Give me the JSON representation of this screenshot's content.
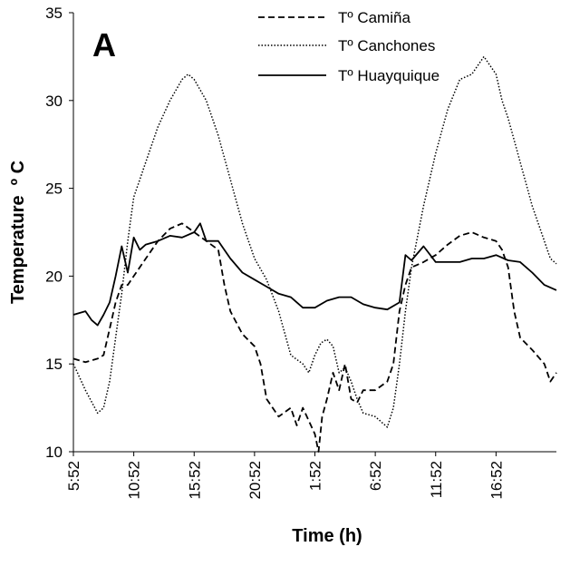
{
  "chart_data": {
    "type": "line",
    "panel_label": "A",
    "xlabel": "Time (h)",
    "ylabel": "Temperature  º C",
    "ylim": [
      10,
      35
    ],
    "yticks": [
      10,
      15,
      20,
      25,
      30,
      35
    ],
    "xlim_hours": [
      0,
      40
    ],
    "xticks": [
      {
        "hours": 0,
        "label": "5:52"
      },
      {
        "hours": 5,
        "label": "10:52"
      },
      {
        "hours": 10,
        "label": "15:52"
      },
      {
        "hours": 15,
        "label": "20:52"
      },
      {
        "hours": 20,
        "label": "1:52"
      },
      {
        "hours": 25,
        "label": "6:52"
      },
      {
        "hours": 30,
        "label": "11:52"
      },
      {
        "hours": 35,
        "label": "16:52"
      }
    ],
    "legend_position": "top-right",
    "series": [
      {
        "name": "Tº Camiña",
        "style": "dashed",
        "points": [
          [
            0,
            15.3
          ],
          [
            1,
            15.1
          ],
          [
            2,
            15.3
          ],
          [
            2.5,
            15.5
          ],
          [
            3,
            17
          ],
          [
            3.5,
            18.5
          ],
          [
            4,
            19.5
          ],
          [
            4.5,
            19.5
          ],
          [
            5,
            20
          ],
          [
            6,
            21
          ],
          [
            7,
            22
          ],
          [
            8,
            22.7
          ],
          [
            9,
            23
          ],
          [
            10,
            22.5
          ],
          [
            11,
            22
          ],
          [
            12,
            21.5
          ],
          [
            12.5,
            19.5
          ],
          [
            13,
            18
          ],
          [
            14,
            16.7
          ],
          [
            15,
            16
          ],
          [
            15.5,
            15
          ],
          [
            16,
            13
          ],
          [
            16.5,
            12.5
          ],
          [
            17,
            12
          ],
          [
            18,
            12.5
          ],
          [
            18.5,
            11.5
          ],
          [
            19,
            12.5
          ],
          [
            20,
            11
          ],
          [
            20.3,
            10
          ],
          [
            20.6,
            12
          ],
          [
            21,
            13
          ],
          [
            21.5,
            14.5
          ],
          [
            22,
            13.5
          ],
          [
            22.5,
            15
          ],
          [
            23,
            13
          ],
          [
            23.5,
            12.8
          ],
          [
            24,
            13.5
          ],
          [
            25,
            13.5
          ],
          [
            26,
            14
          ],
          [
            26.5,
            15
          ],
          [
            27,
            18
          ],
          [
            27.5,
            19.5
          ],
          [
            28,
            20.5
          ],
          [
            29,
            20.8
          ],
          [
            30,
            21.2
          ],
          [
            31,
            21.8
          ],
          [
            32,
            22.3
          ],
          [
            33,
            22.5
          ],
          [
            34,
            22.2
          ],
          [
            35,
            22
          ],
          [
            35.5,
            21.5
          ],
          [
            36,
            20.5
          ],
          [
            36.5,
            18
          ],
          [
            37,
            16.5
          ],
          [
            38,
            15.8
          ],
          [
            39,
            15
          ],
          [
            39.5,
            14
          ],
          [
            40,
            14.5
          ]
        ]
      },
      {
        "name": "Tº Canchones",
        "style": "dotted",
        "points": [
          [
            0,
            15
          ],
          [
            1,
            13.5
          ],
          [
            2,
            12.2
          ],
          [
            2.5,
            12.5
          ],
          [
            3,
            14
          ],
          [
            3.5,
            16.5
          ],
          [
            4,
            19
          ],
          [
            4.5,
            22
          ],
          [
            5,
            24.5
          ],
          [
            5.5,
            25.5
          ],
          [
            6,
            26.5
          ],
          [
            7,
            28.5
          ],
          [
            8,
            30
          ],
          [
            9,
            31.2
          ],
          [
            9.5,
            31.5
          ],
          [
            10,
            31.2
          ],
          [
            11,
            30
          ],
          [
            12,
            28
          ],
          [
            13,
            25.5
          ],
          [
            14,
            23
          ],
          [
            15,
            21
          ],
          [
            16,
            19.8
          ],
          [
            17,
            18
          ],
          [
            18,
            15.5
          ],
          [
            19,
            15
          ],
          [
            19.5,
            14.5
          ],
          [
            20,
            15.5
          ],
          [
            20.5,
            16.2
          ],
          [
            21,
            16.4
          ],
          [
            21.5,
            16
          ],
          [
            22,
            14.5
          ],
          [
            22.5,
            14.8
          ],
          [
            23,
            14
          ],
          [
            23.5,
            13
          ],
          [
            24,
            12.2
          ],
          [
            25,
            12
          ],
          [
            26,
            11.4
          ],
          [
            26.5,
            12.5
          ],
          [
            27,
            15
          ],
          [
            27.5,
            18
          ],
          [
            28,
            20.5
          ],
          [
            29,
            24
          ],
          [
            30,
            27
          ],
          [
            31,
            29.5
          ],
          [
            32,
            31.2
          ],
          [
            33,
            31.5
          ],
          [
            34,
            32.5
          ],
          [
            34.5,
            32
          ],
          [
            35,
            31.5
          ],
          [
            35.5,
            30
          ],
          [
            36,
            29
          ],
          [
            37,
            26.5
          ],
          [
            38,
            24
          ],
          [
            39,
            22
          ],
          [
            39.5,
            21
          ],
          [
            40,
            20.7
          ]
        ]
      },
      {
        "name": "Tº Huayquique",
        "style": "solid",
        "points": [
          [
            0,
            17.8
          ],
          [
            1,
            18
          ],
          [
            1.5,
            17.5
          ],
          [
            2,
            17.2
          ],
          [
            2.5,
            17.8
          ],
          [
            3,
            18.5
          ],
          [
            3.5,
            20
          ],
          [
            4,
            21.7
          ],
          [
            4.5,
            20.2
          ],
          [
            5,
            22.2
          ],
          [
            5.5,
            21.5
          ],
          [
            6,
            21.8
          ],
          [
            7,
            22
          ],
          [
            8,
            22.3
          ],
          [
            9,
            22.2
          ],
          [
            10,
            22.5
          ],
          [
            10.5,
            23
          ],
          [
            11,
            22
          ],
          [
            12,
            22
          ],
          [
            13,
            21
          ],
          [
            14,
            20.2
          ],
          [
            15,
            19.8
          ],
          [
            16,
            19.4
          ],
          [
            17,
            19
          ],
          [
            18,
            18.8
          ],
          [
            19,
            18.2
          ],
          [
            20,
            18.2
          ],
          [
            21,
            18.6
          ],
          [
            22,
            18.8
          ],
          [
            23,
            18.8
          ],
          [
            24,
            18.4
          ],
          [
            25,
            18.2
          ],
          [
            26,
            18.1
          ],
          [
            27,
            18.5
          ],
          [
            27.5,
            21.2
          ],
          [
            28,
            20.9
          ],
          [
            29,
            21.7
          ],
          [
            30,
            20.8
          ],
          [
            31,
            20.8
          ],
          [
            32,
            20.8
          ],
          [
            33,
            21
          ],
          [
            34,
            21
          ],
          [
            35,
            21.2
          ],
          [
            36,
            20.9
          ],
          [
            37,
            20.8
          ],
          [
            38,
            20.2
          ],
          [
            39,
            19.5
          ],
          [
            40,
            19.2
          ]
        ]
      }
    ]
  }
}
